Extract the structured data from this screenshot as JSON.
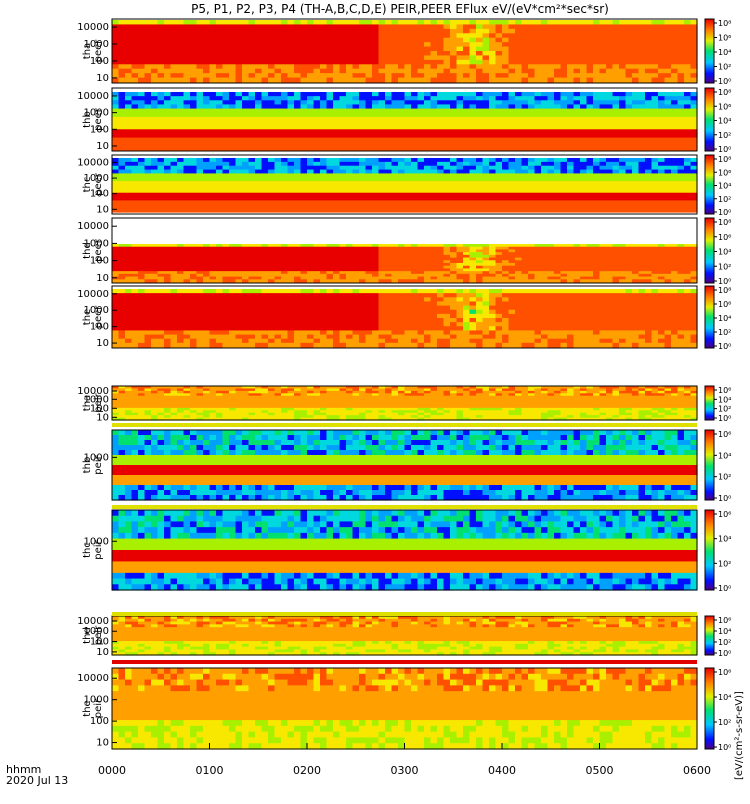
{
  "chart_data": {
    "type": "heatmap",
    "title": "P5, P1, P2, P3, P4 (TH-A,B,C,D,E) PEIR,PEER EFlux eV/(eV*cm²*sec*sr)",
    "x_caption": "hhmm",
    "date_label": "2020 Jul 13",
    "x_range": [
      "00:00",
      "06:00"
    ],
    "x_ticks": [
      "0000",
      "0100",
      "0200",
      "0300",
      "0400",
      "0500",
      "0600"
    ],
    "y_scale": "log",
    "y_range": [
      5,
      30000
    ],
    "colorbar": {
      "scale": "log",
      "label": "[eV/(cm²-s-sr-eV)]",
      "ticks_esa": [
        "10⁸",
        "10⁶",
        "10⁴",
        "10²",
        "10⁰"
      ],
      "ticks_esa_lo": [
        "10⁶",
        "10⁴",
        "10²",
        "10⁰"
      ]
    },
    "panels": [
      {
        "probe": "tha",
        "species": "peer",
        "yticks": [
          "10000",
          "1000",
          "100",
          "10"
        ]
      },
      {
        "probe": "thb",
        "species": "peer",
        "yticks": [
          "10000",
          "1000",
          "100",
          "10"
        ]
      },
      {
        "probe": "thc",
        "species": "peer",
        "yticks": [
          "10000",
          "1000",
          "100",
          "10"
        ]
      },
      {
        "probe": "thd",
        "species": "peer",
        "yticks": [
          "10000",
          "1000",
          "100",
          "10"
        ]
      },
      {
        "probe": "the",
        "species": "peer",
        "yticks": [
          "10000",
          "1000",
          "100",
          "10"
        ]
      },
      {
        "probe": "tha",
        "species": "peir",
        "yticks": [
          "10000",
          "1000",
          "100",
          "10"
        ]
      },
      {
        "probe": "thb",
        "species": "peir",
        "yticks": [
          "1000"
        ]
      },
      {
        "probe": "thc",
        "species": "peir",
        "yticks": [
          "1000"
        ]
      },
      {
        "probe": "thd",
        "species": "peir",
        "yticks": [
          "10000",
          "1000",
          "100",
          "10"
        ]
      },
      {
        "probe": "the",
        "species": "peir",
        "yticks": [
          "10000",
          "1000",
          "100",
          "10"
        ]
      }
    ]
  }
}
